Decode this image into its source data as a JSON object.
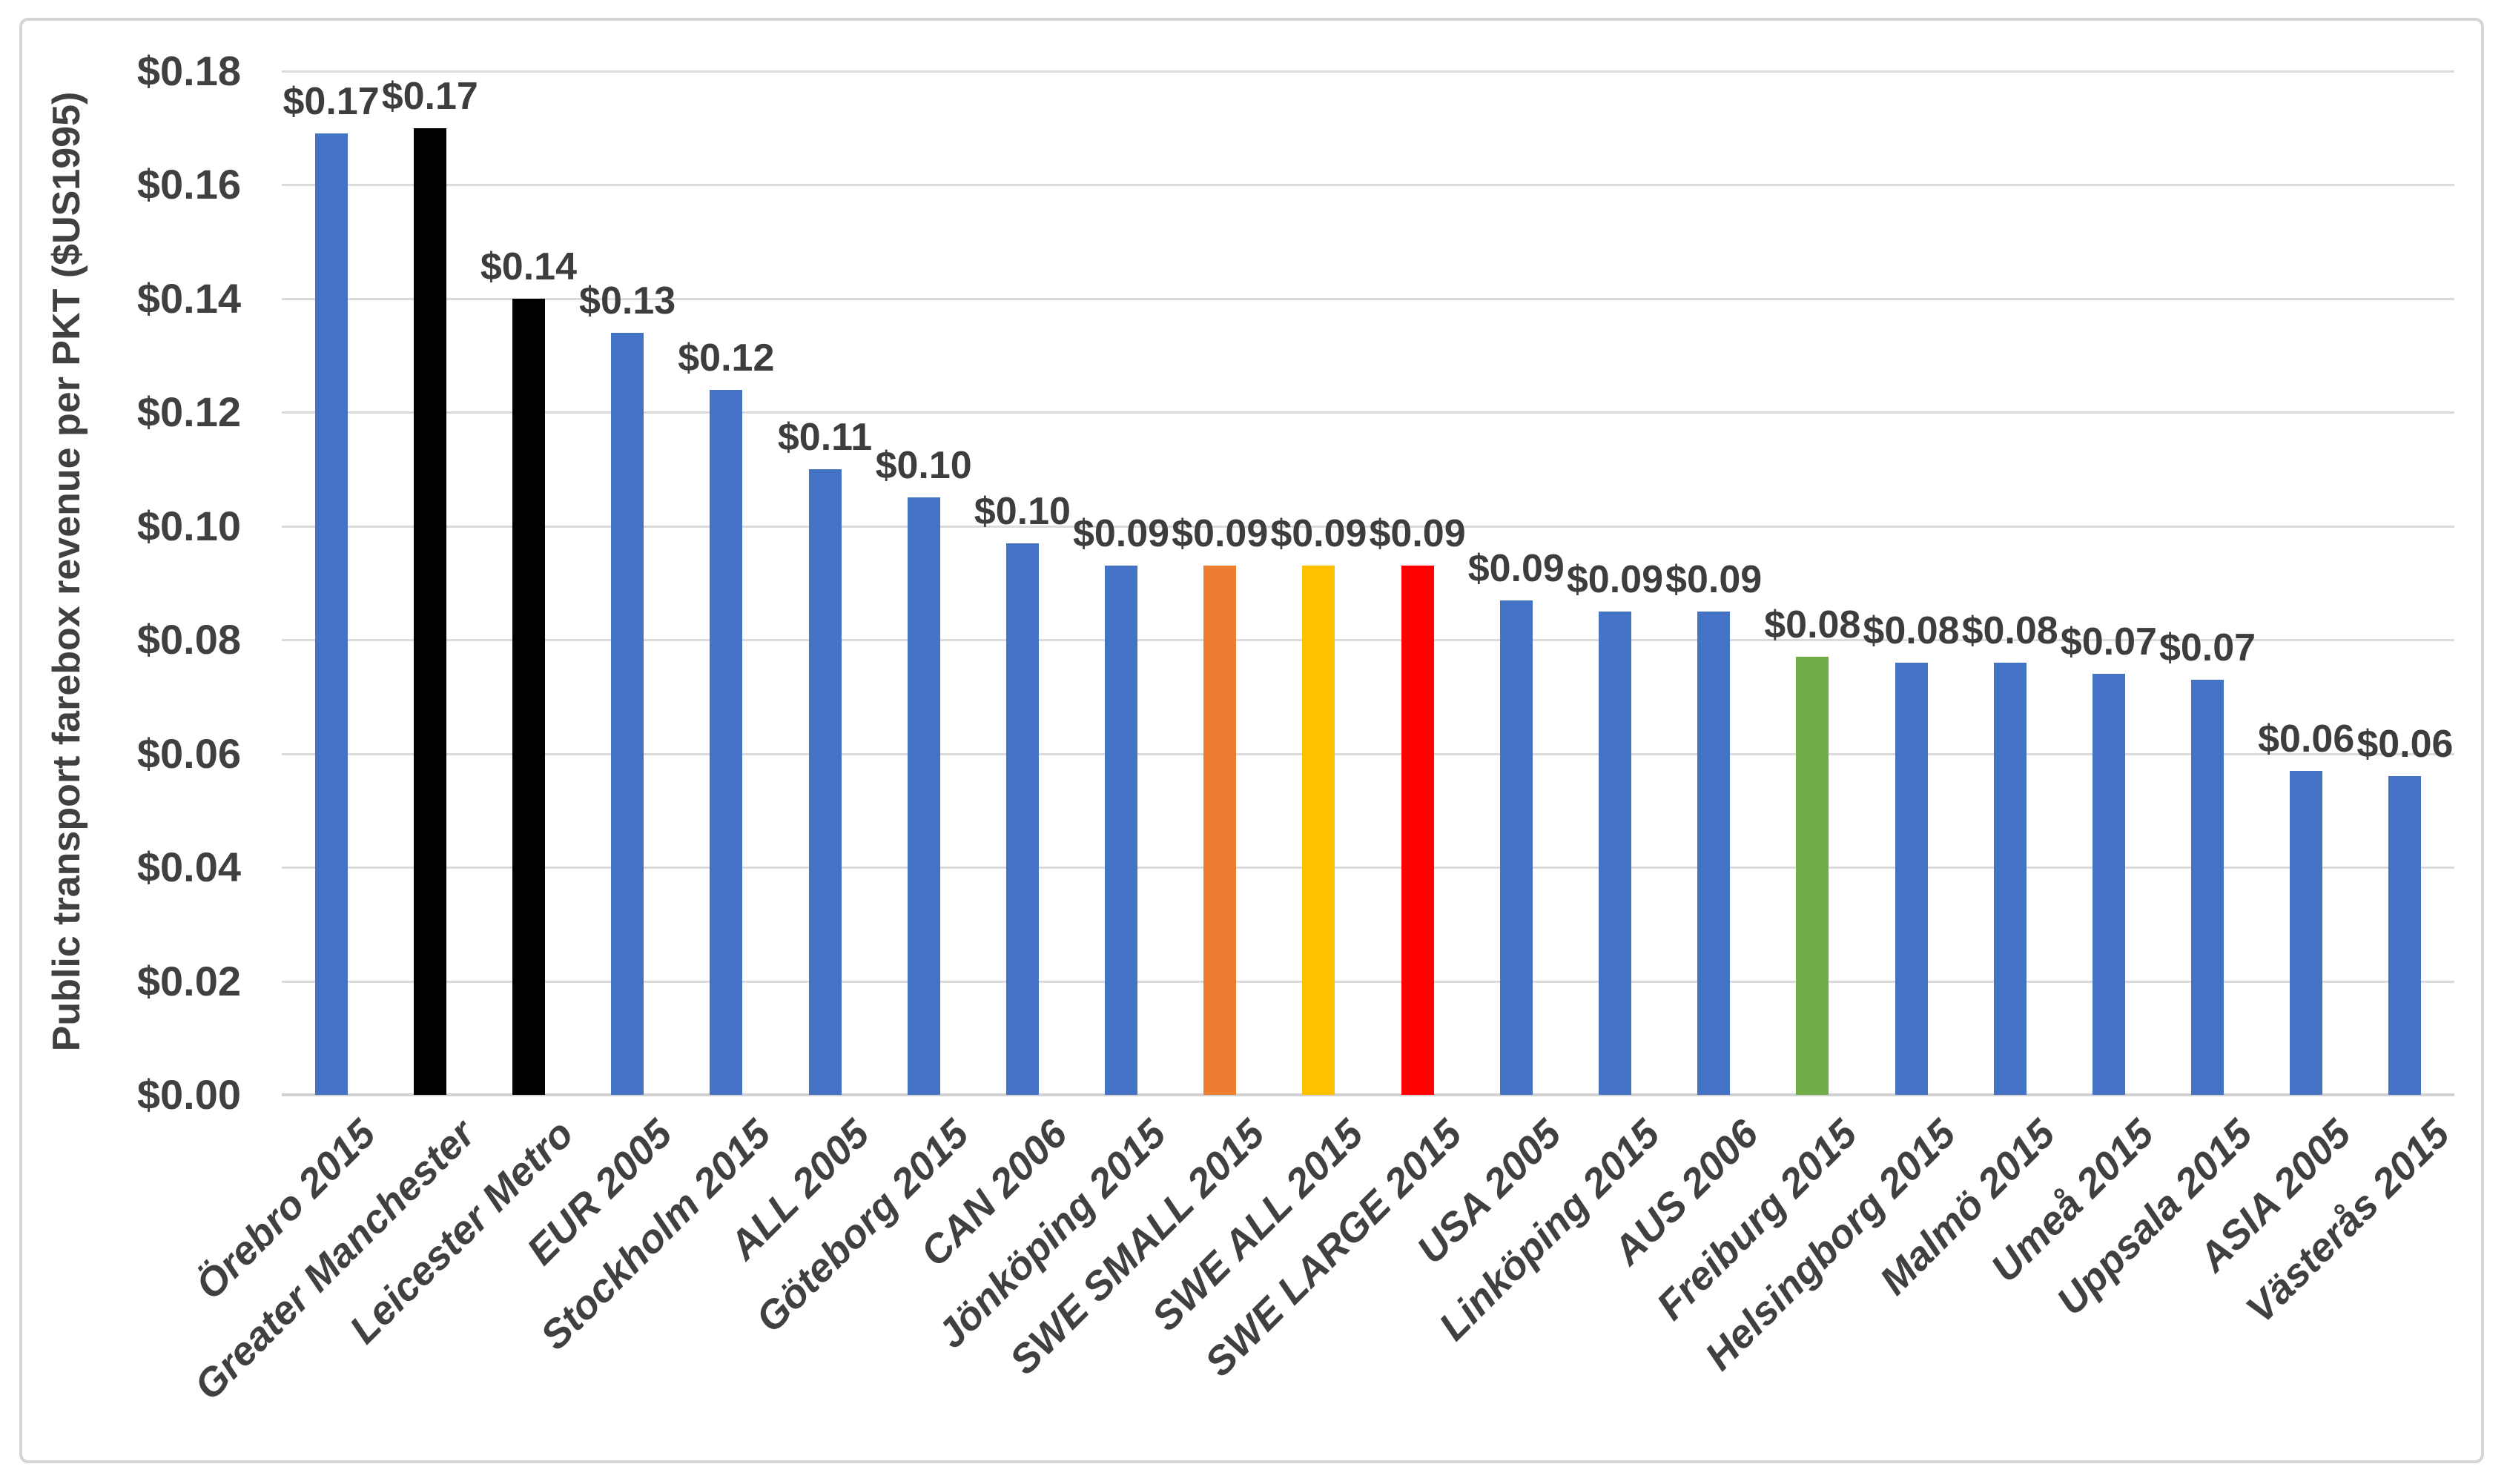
{
  "chart_data": {
    "type": "bar",
    "title": "",
    "xlabel": "",
    "ylabel": "Public transport farebox revenue per PKT ($US1995)",
    "ylim": [
      0,
      0.18
    ],
    "ytick_step": 0.02,
    "grid": "horizontal",
    "legend": "none",
    "categories": [
      "Örebro 2015",
      "Greater Manchester",
      "Leicester Metro",
      "EUR 2005",
      "Stockholm 2015",
      "ALL 2005",
      "Göteborg 2015",
      "CAN 2006",
      "Jönköping 2015",
      "SWE SMALL 2015",
      "SWE ALL 2015",
      "SWE LARGE 2015",
      "USA 2005",
      "Linköping 2015",
      "AUS 2006",
      "Freiburg 2015",
      "Helsingborg 2015",
      "Malmö 2015",
      "Umeå 2015",
      "Uppsala 2015",
      "ASIA 2005",
      "Västerås 2015"
    ],
    "values": [
      0.169,
      0.17,
      0.14,
      0.134,
      0.124,
      0.11,
      0.105,
      0.097,
      0.093,
      0.093,
      0.093,
      0.093,
      0.087,
      0.085,
      0.085,
      0.077,
      0.076,
      0.076,
      0.074,
      0.073,
      0.057,
      0.056
    ],
    "value_labels": [
      "$0.17",
      "$0.17",
      "$0.14",
      "$0.13",
      "$0.12",
      "$0.11",
      "$0.10",
      "$0.10",
      "$0.09",
      "$0.09",
      "$0.09",
      "$0.09",
      "$0.09",
      "$0.09",
      "$0.09",
      "$0.08",
      "$0.08",
      "$0.08",
      "$0.07",
      "$0.07",
      "$0.06",
      "$0.06"
    ],
    "bar_colors": [
      "blue",
      "black",
      "black",
      "blue",
      "blue",
      "blue",
      "blue",
      "blue",
      "blue",
      "orange",
      "yellow",
      "red",
      "blue",
      "blue",
      "blue",
      "green",
      "blue",
      "blue",
      "blue",
      "blue",
      "blue",
      "blue"
    ],
    "yticks": [
      {
        "label": "$0.18",
        "value": 0.18
      },
      {
        "label": "$0.16",
        "value": 0.16
      },
      {
        "label": "$0.14",
        "value": 0.14
      },
      {
        "label": "$0.12",
        "value": 0.12
      },
      {
        "label": "$0.10",
        "value": 0.1
      },
      {
        "label": "$0.08",
        "value": 0.08
      },
      {
        "label": "$0.06",
        "value": 0.06
      },
      {
        "label": "$0.04",
        "value": 0.04
      },
      {
        "label": "$0.02",
        "value": 0.02
      },
      {
        "label": "$0.00",
        "value": 0.0
      }
    ]
  },
  "colors": {
    "blue": "#4472C4",
    "black": "#000000",
    "orange": "#ED7D31",
    "yellow": "#FFC000",
    "red": "#FF0000",
    "green": "#70AD47",
    "gridline": "#DBDBDB",
    "axis_line": "#D2D2D2",
    "text": "#404040",
    "frame_border": "#D5D5D5",
    "background": "#FFFFFF"
  }
}
